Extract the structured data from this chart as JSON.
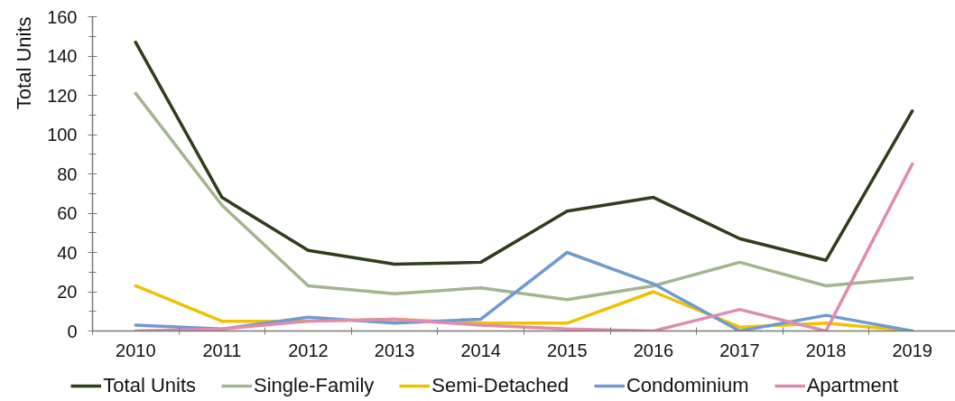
{
  "chart_data": {
    "type": "line",
    "ylabel": "Total Units",
    "categories": [
      "2010",
      "2011",
      "2012",
      "2013",
      "2014",
      "2015",
      "2016",
      "2017",
      "2018",
      "2019"
    ],
    "ylim": [
      0,
      160
    ],
    "yticks": [
      0,
      {
        "value": 10,
        "label": null
      },
      20,
      {
        "value": 30,
        "label": null
      },
      40,
      {
        "value": 50,
        "label": null
      },
      60,
      {
        "value": 70,
        "label": null
      },
      80,
      {
        "value": 90,
        "label": null
      },
      100,
      {
        "value": 110,
        "label": null
      },
      120,
      {
        "value": 130,
        "label": null
      },
      140,
      {
        "value": 150,
        "label": null
      },
      160
    ],
    "legend": "bottom",
    "line_style": "solid",
    "series": [
      {
        "name": "Total Units",
        "color": "#2f3d1c",
        "values": [
          147,
          68,
          41,
          34,
          35,
          61,
          68,
          47,
          36,
          112
        ]
      },
      {
        "name": "Single-Family",
        "color": "#a3b58f",
        "values": [
          121,
          64,
          23,
          19,
          22,
          16,
          23,
          35,
          23,
          27
        ]
      },
      {
        "name": "Semi-Detached",
        "color": "#f2c200",
        "values": [
          23,
          5,
          5,
          6,
          4,
          4,
          20,
          2,
          4,
          0
        ]
      },
      {
        "name": "Condominium",
        "color": "#6f9bd1",
        "values": [
          3,
          1,
          7,
          4,
          6,
          40,
          24,
          0,
          8,
          0
        ]
      },
      {
        "name": "Apartment",
        "color": "#e08bb0",
        "values": [
          0,
          1,
          5,
          6,
          3,
          1,
          0,
          11,
          0,
          85
        ]
      }
    ]
  }
}
